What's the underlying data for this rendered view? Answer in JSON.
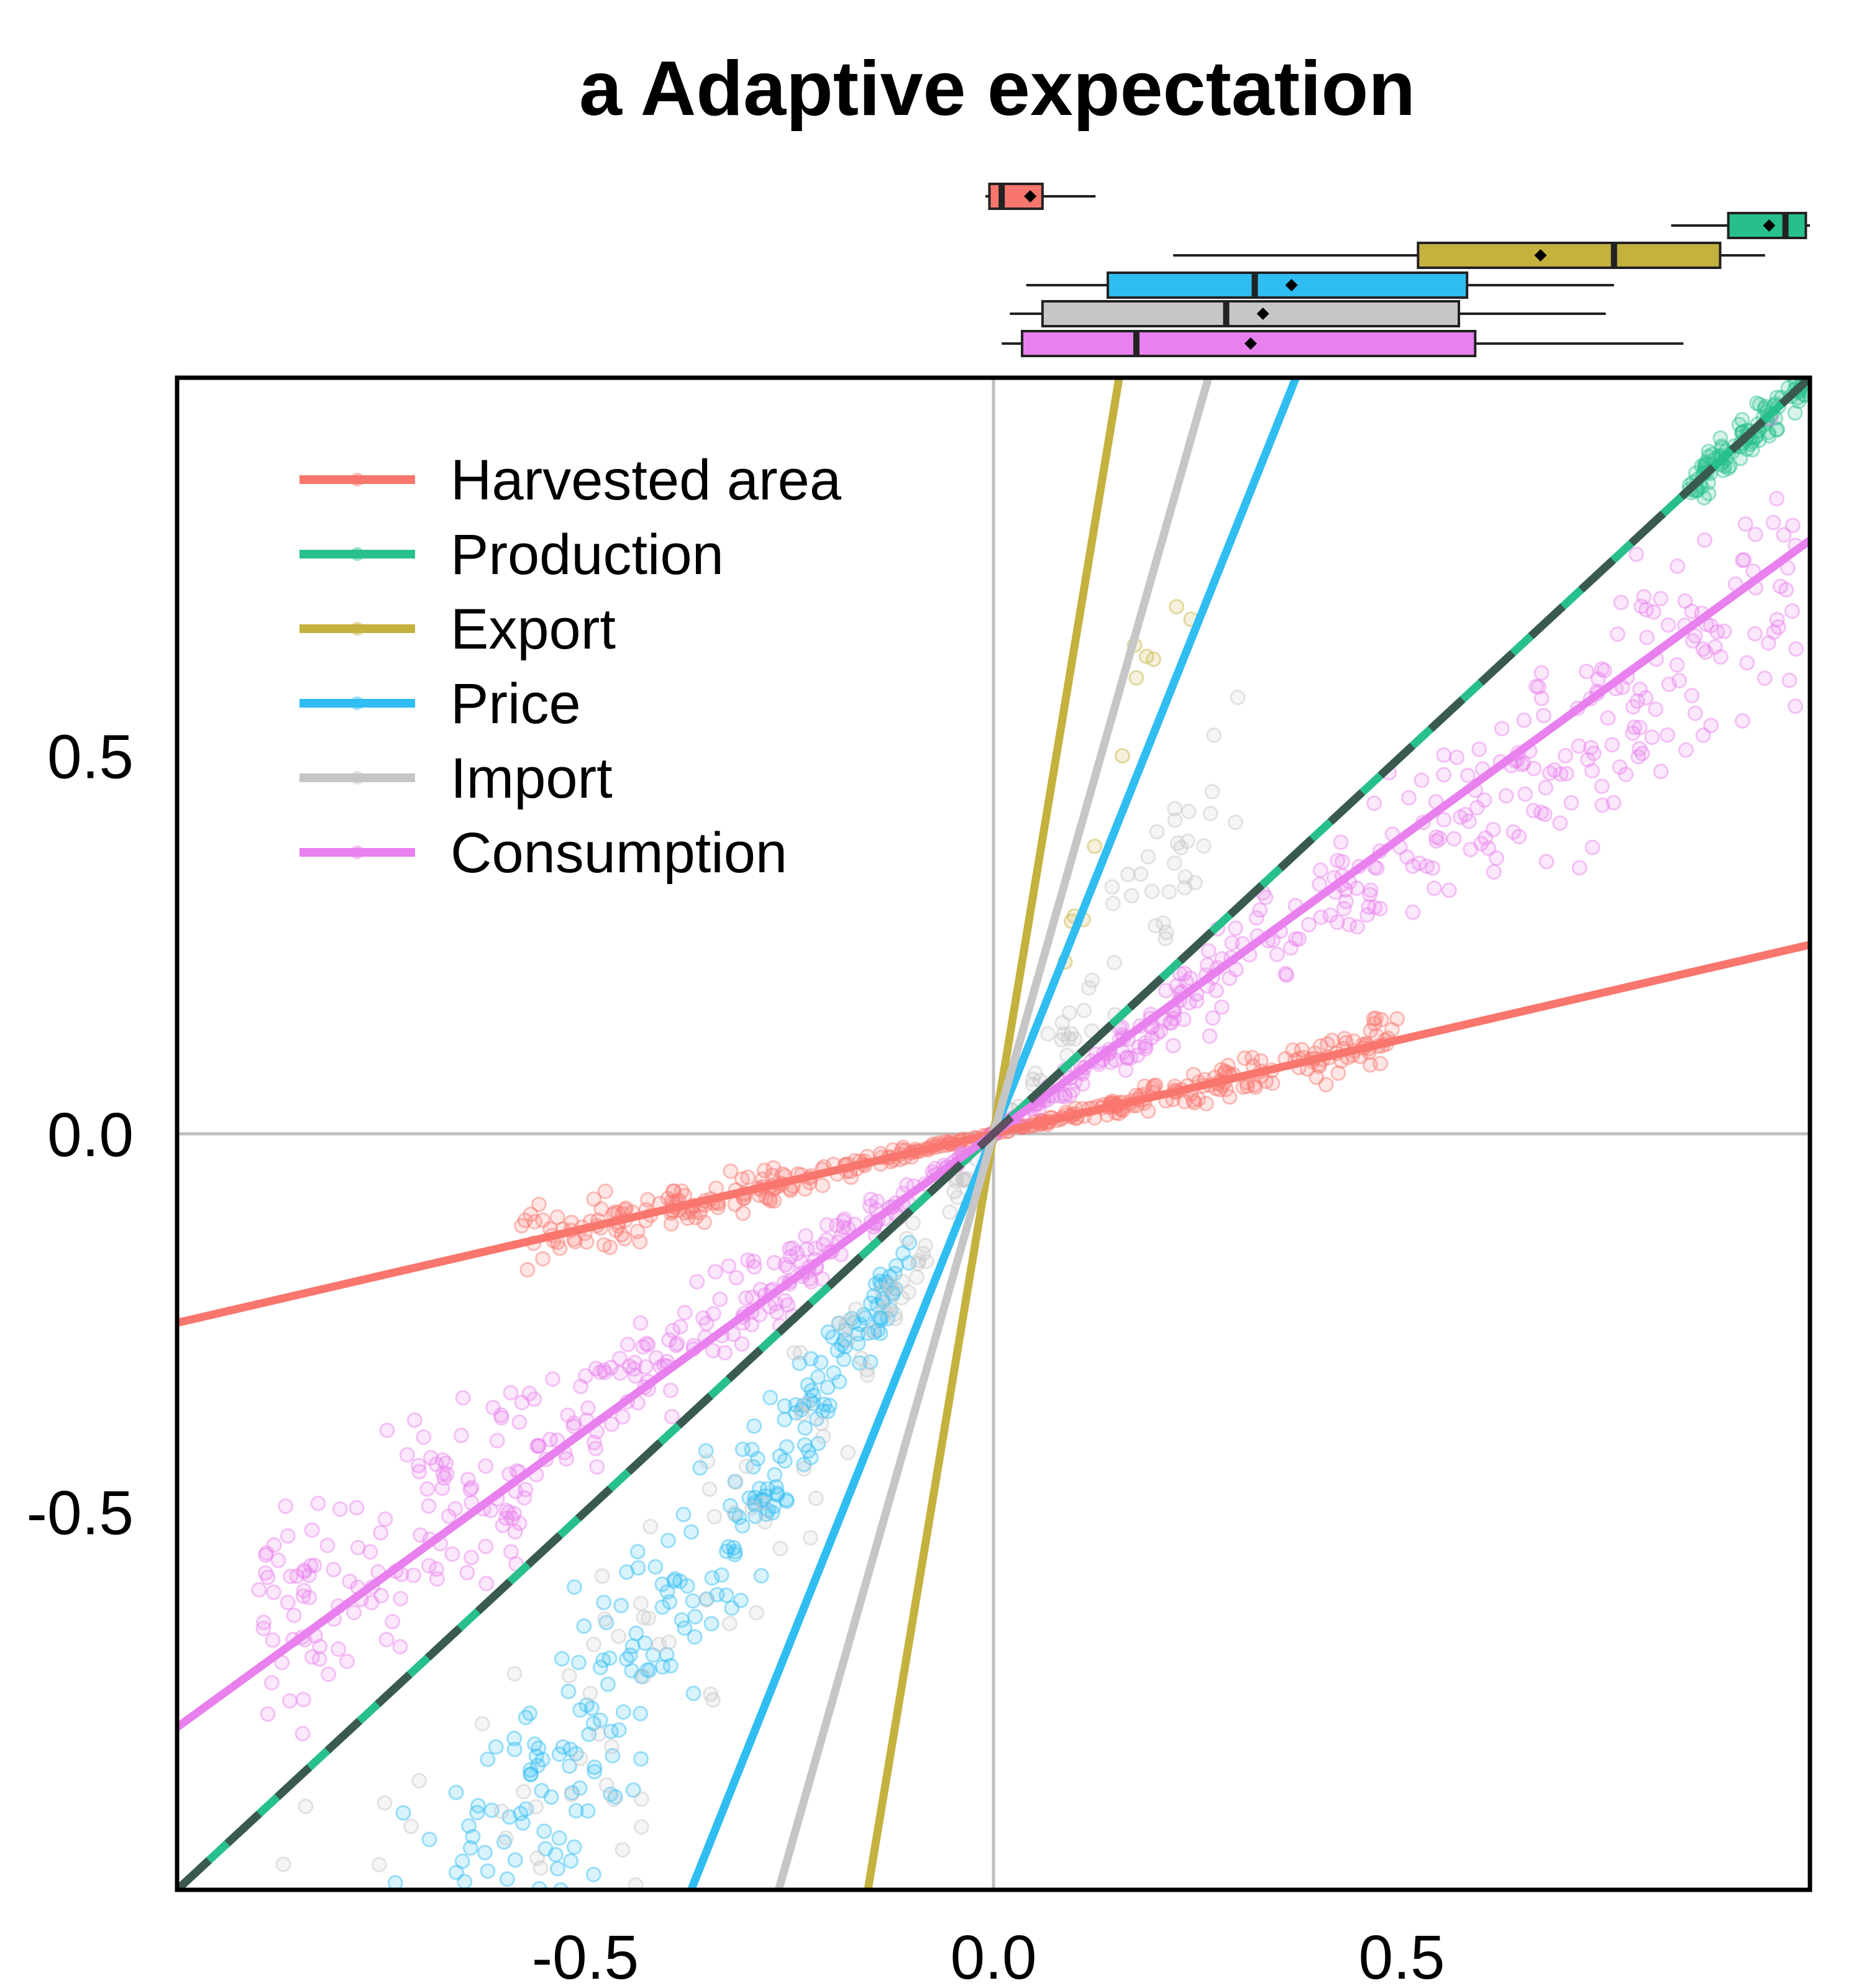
{
  "chart_data": {
    "type": "scatter",
    "title": "a Adaptive expectation",
    "xlabel": "",
    "ylabel": "",
    "xlim": [
      -1.0,
      1.0
    ],
    "ylim": [
      -1.0,
      1.0
    ],
    "x_ticks": [
      "-0.5",
      "0.0",
      "0.5"
    ],
    "y_ticks": [
      "0.5",
      "0.0",
      "-0.5"
    ],
    "x_tick_values": [
      -0.5,
      0.0,
      0.5
    ],
    "y_tick_values": [
      0.5,
      0.0,
      -0.5
    ],
    "grid": false,
    "reference_lines": [
      "x=0",
      "y=0",
      "y=x (dashed)"
    ],
    "legend_position": "top-left",
    "series": [
      {
        "name": "Harvested area",
        "color": "#F8766D",
        "slope": 0.25,
        "box": {
          "min": -0.01,
          "q1": -0.005,
          "median": 0.01,
          "mean": 0.045,
          "q3": 0.06,
          "max": 0.125
        },
        "cluster": {
          "x_range": [
            -0.58,
            0.5
          ],
          "count": 380
        }
      },
      {
        "name": "Production",
        "color": "#27C08C",
        "slope": 1.0,
        "box": {
          "min": 0.83,
          "q1": 0.9,
          "median": 0.97,
          "mean": 0.95,
          "q3": 0.995,
          "max": 1.0
        },
        "cluster": {
          "x_range": [
            0.85,
            1.0
          ],
          "count": 110
        }
      },
      {
        "name": "Export",
        "color": "#C5B13E",
        "slope": 6.5,
        "box": {
          "min": 0.22,
          "q1": 0.52,
          "median": 0.76,
          "mean": 0.67,
          "q3": 0.89,
          "max": 0.945
        },
        "cluster": {
          "x_range": [
            0.05,
            0.25
          ],
          "count": 12
        }
      },
      {
        "name": "Price",
        "color": "#2FBDF2",
        "slope": 2.7,
        "box": {
          "min": 0.04,
          "q1": 0.14,
          "median": 0.32,
          "mean": 0.365,
          "q3": 0.58,
          "max": 0.76
        },
        "cluster": {
          "x_range": [
            -0.98,
            -0.1
          ],
          "count": 420
        }
      },
      {
        "name": "Import",
        "color": "#C6C6C6",
        "slope": 3.8,
        "box": {
          "min": 0.02,
          "q1": 0.06,
          "median": 0.285,
          "mean": 0.33,
          "q3": 0.57,
          "max": 0.75
        },
        "cluster": {
          "x_range": [
            -1.0,
            0.3
          ],
          "count": 230
        }
      },
      {
        "name": "Consumption",
        "color": "#E880EE",
        "slope": 0.785,
        "box": {
          "min": 0.01,
          "q1": 0.035,
          "median": 0.175,
          "mean": 0.315,
          "q3": 0.59,
          "max": 0.845
        },
        "cluster": {
          "x_range": [
            -0.9,
            1.0
          ],
          "count": 650
        }
      }
    ]
  }
}
